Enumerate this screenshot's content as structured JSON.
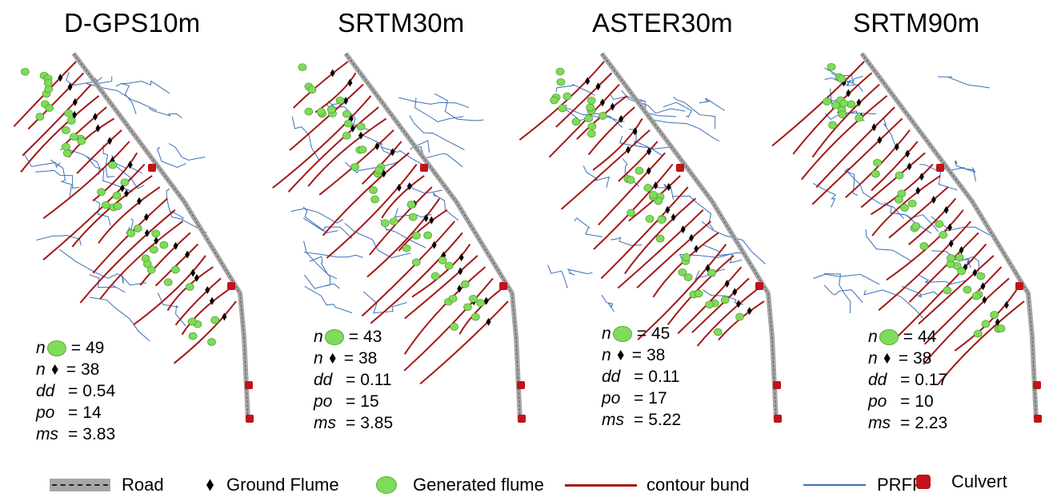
{
  "panels": [
    {
      "title": "D-GPS10m",
      "n_generated": "49",
      "n_ground": "38",
      "dd": "0.54",
      "po": "14",
      "ms": "3.83"
    },
    {
      "title": "SRTM30m",
      "n_generated": "43",
      "n_ground": "38",
      "dd": "0.11",
      "po": "15",
      "ms": "3.85"
    },
    {
      "title": "ASTER30m",
      "n_generated": "45",
      "n_ground": "38",
      "dd": "0.11",
      "po": "17",
      "ms": "5.22"
    },
    {
      "title": "SRTM90m",
      "n_generated": "44",
      "n_ground": "38",
      "dd": "0.17",
      "po": "10",
      "ms": "2.23"
    }
  ],
  "stat_symbols": {
    "n": "n",
    "dd": "dd",
    "po": "po",
    "ms": "ms",
    "eq": "="
  },
  "legend": {
    "road": "Road",
    "ground_flume": "Ground Flume",
    "generated_flume": "Generated flume",
    "contour_bund": "contour bund",
    "prfp": "PRFP",
    "culvert": "Culvert"
  },
  "colors": {
    "road": "#a6a6a6",
    "contour_bund": "#a31818",
    "prfp": "#3a6fb8",
    "generated_flume": "#7fdc5a",
    "ground_flume": "#000000",
    "culvert": "#c0141a"
  },
  "icons": [
    "road-line-icon",
    "ground-flume-diamond-icon",
    "generated-flume-circle-icon",
    "contour-bund-line-icon",
    "prfp-line-icon",
    "culvert-square-icon"
  ]
}
